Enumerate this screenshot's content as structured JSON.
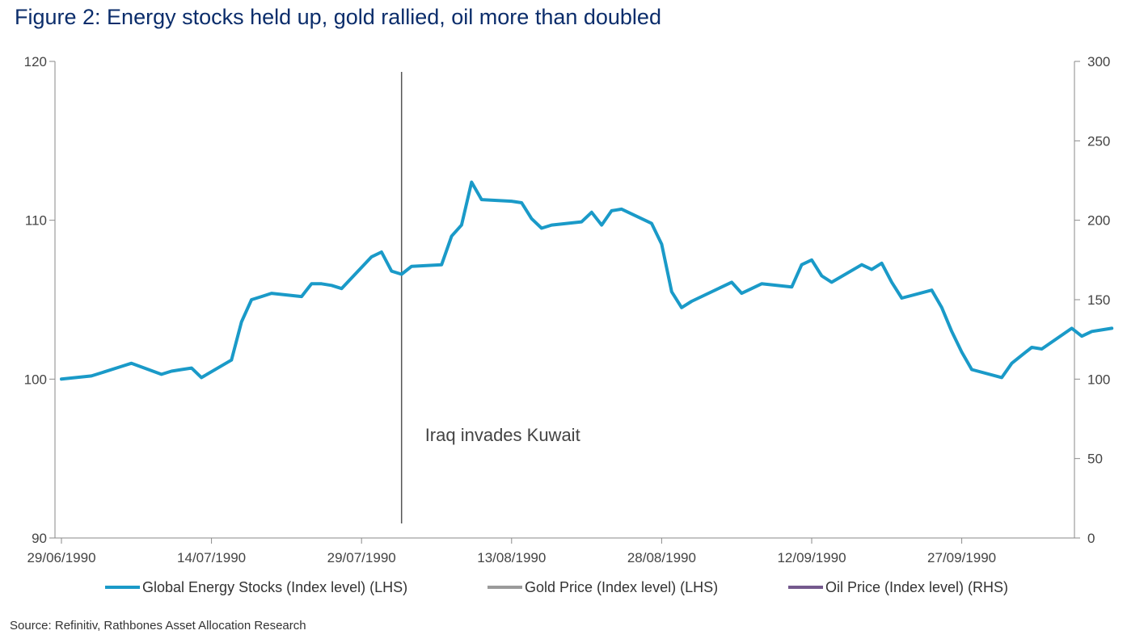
{
  "title": "Figure 2: Energy stocks held up, gold rallied, oil more than doubled",
  "source": "Source: Refinitiv, Rathbones Asset Allocation Research",
  "chart_data": {
    "type": "line",
    "x_tick_labels": [
      "29/06/1990",
      "14/07/1990",
      "29/07/1990",
      "13/08/1990",
      "28/08/1990",
      "12/09/1990",
      "27/09/1990"
    ],
    "x_range": [
      "29/06/1990",
      "12/10/1990"
    ],
    "y_left": {
      "range": [
        90,
        120
      ],
      "ticks": [
        90,
        100,
        110,
        120
      ]
    },
    "y_right": {
      "range": [
        0,
        300
      ],
      "ticks": [
        0,
        50,
        100,
        150,
        200,
        250,
        300
      ]
    },
    "grid": false,
    "legend_position": "bottom",
    "annotation": {
      "text": "Iraq invades Kuwait",
      "date": "02/08/1990"
    },
    "colors": {
      "energy": "#1a9ac8",
      "gold": "#9b9b9b",
      "oil": "#74598d"
    },
    "series": [
      {
        "name": "Global Energy Stocks (Index level) (LHS)",
        "axis": "left",
        "color": "#1a9ac8",
        "x": [
          "29/06/1990",
          "02/07/1990",
          "03/07/1990",
          "05/07/1990",
          "06/07/1990",
          "09/07/1990",
          "10/07/1990",
          "11/07/1990",
          "12/07/1990",
          "13/07/1990",
          "16/07/1990",
          "17/07/1990",
          "18/07/1990",
          "19/07/1990",
          "20/07/1990",
          "23/07/1990",
          "24/07/1990",
          "25/07/1990",
          "26/07/1990",
          "27/07/1990",
          "30/07/1990",
          "31/07/1990",
          "01/08/1990",
          "02/08/1990",
          "03/08/1990",
          "06/08/1990",
          "07/08/1990",
          "08/08/1990",
          "09/08/1990",
          "10/08/1990",
          "13/08/1990",
          "14/08/1990",
          "15/08/1990",
          "16/08/1990",
          "17/08/1990",
          "20/08/1990",
          "21/08/1990",
          "22/08/1990",
          "23/08/1990",
          "24/08/1990",
          "27/08/1990",
          "28/08/1990",
          "29/08/1990",
          "30/08/1990",
          "31/08/1990",
          "03/09/1990",
          "04/09/1990",
          "05/09/1990",
          "06/09/1990",
          "07/09/1990",
          "10/09/1990",
          "11/09/1990",
          "12/09/1990",
          "13/09/1990",
          "14/09/1990",
          "17/09/1990",
          "18/09/1990",
          "19/09/1990",
          "20/09/1990",
          "21/09/1990",
          "24/09/1990",
          "25/09/1990",
          "26/09/1990",
          "27/09/1990",
          "28/09/1990",
          "01/10/1990",
          "02/10/1990",
          "03/10/1990",
          "04/10/1990",
          "05/10/1990",
          "08/10/1990",
          "09/10/1990",
          "10/10/1990",
          "11/10/1990",
          "12/10/1990"
        ],
        "values": [
          100,
          100.2,
          100.4,
          100.8,
          101.0,
          100.3,
          100.5,
          100.6,
          100.7,
          100.1,
          101.2,
          103.6,
          105.0,
          105.2,
          105.4,
          105.2,
          106.0,
          106.0,
          105.9,
          105.7,
          107.7,
          108.0,
          106.8,
          106.6,
          107.1,
          107.2,
          109.0,
          109.7,
          112.4,
          111.3,
          111.2,
          111.1,
          110.1,
          109.5,
          109.7,
          109.9,
          110.5,
          109.7,
          110.6,
          110.7,
          109.8,
          108.5,
          105.5,
          104.5,
          104.9,
          105.8,
          106.1,
          105.4,
          105.7,
          106.0,
          105.8,
          107.2,
          107.5,
          106.5,
          106.1,
          107.2,
          106.9,
          107.3,
          106.1,
          105.1,
          105.6,
          104.5,
          103.0,
          101.7,
          100.6,
          100.1,
          101.0,
          101.5,
          102.0,
          101.9,
          103.2,
          102.7,
          103.0,
          103.1,
          103.2
        ],
        "note": "values approximated from chart"
      },
      {
        "name": "Gold Price (Index level) (LHS)",
        "axis": "left",
        "color": "#9b9b9b",
        "x": [],
        "values": []
      },
      {
        "name": "Oil Price (Index level) (RHS)",
        "axis": "right",
        "color": "#74598d",
        "x": [],
        "values": []
      }
    ]
  }
}
